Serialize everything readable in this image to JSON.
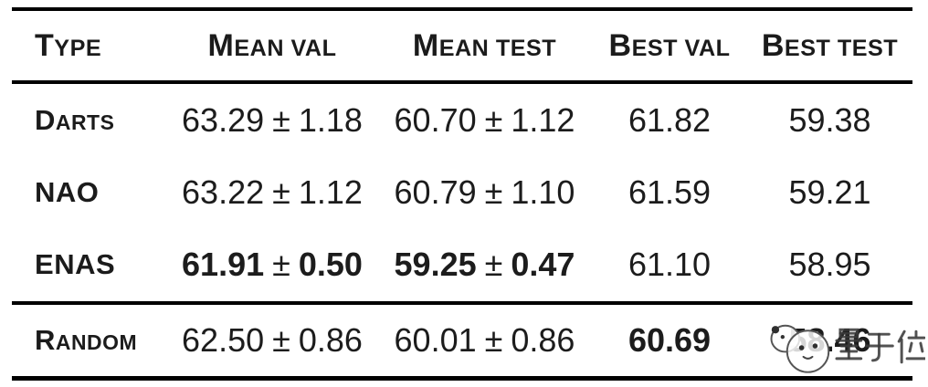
{
  "table": {
    "header": {
      "type": "Type",
      "mean_val": "Mean val",
      "mean_test": "Mean test",
      "best_val": "Best val",
      "best_test": "Best test"
    },
    "plus_minus": "±",
    "rows": [
      {
        "type": "Darts",
        "mean_val": {
          "v": "63.29",
          "e": "1.18"
        },
        "mean_test": {
          "v": "60.70",
          "e": "1.12"
        },
        "best_val": "61.82",
        "best_test": "59.38"
      },
      {
        "type": "NAO",
        "mean_val": {
          "v": "63.22",
          "e": "1.12"
        },
        "mean_test": {
          "v": "60.79",
          "e": "1.10"
        },
        "best_val": "61.59",
        "best_test": "59.21"
      },
      {
        "type": "ENAS",
        "mean_val": {
          "v": "61.91",
          "e": "0.50"
        },
        "mean_test": {
          "v": "59.25",
          "e": "0.47"
        },
        "best_val": "61.10",
        "best_test": "58.95"
      },
      {
        "type": "Random",
        "mean_val": {
          "v": "62.50",
          "e": "0.86"
        },
        "mean_test": {
          "v": "60.01",
          "e": "0.86"
        },
        "best_val": "60.69",
        "best_test": "58.46"
      }
    ]
  },
  "watermark": {
    "text": "量子位",
    "mascot": "qbitai-mascot-icon",
    "color": "#3a3a3a"
  },
  "colors": {
    "background": "#ffffff",
    "text": "#1b1b1b",
    "rule": "#000000"
  }
}
